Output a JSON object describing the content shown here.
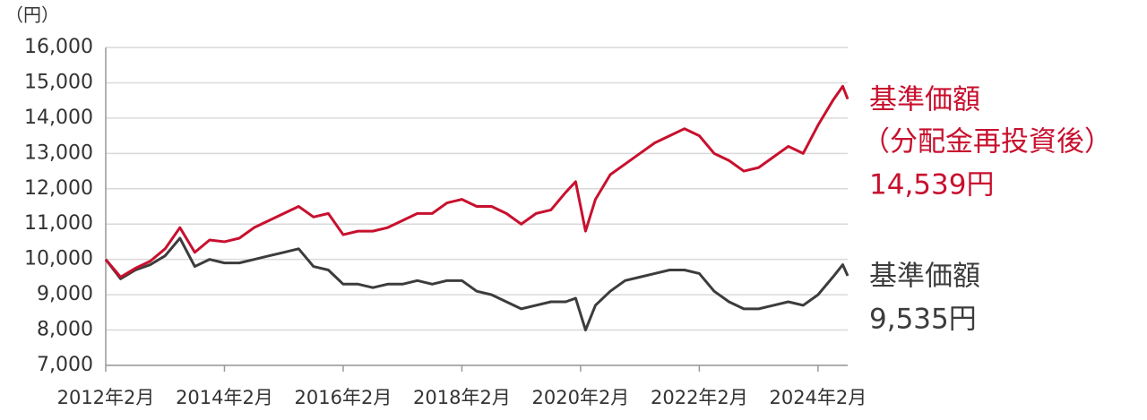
{
  "chart_data": {
    "type": "line",
    "y_unit": "（円）",
    "x": [
      "2012-02",
      "2012-05",
      "2012-08",
      "2012-11",
      "2013-02",
      "2013-05",
      "2013-08",
      "2013-11",
      "2014-02",
      "2014-05",
      "2014-08",
      "2014-11",
      "2015-02",
      "2015-05",
      "2015-08",
      "2015-11",
      "2016-02",
      "2016-05",
      "2016-08",
      "2016-11",
      "2017-02",
      "2017-05",
      "2017-08",
      "2017-11",
      "2018-02",
      "2018-05",
      "2018-08",
      "2018-11",
      "2019-02",
      "2019-05",
      "2019-08",
      "2019-11",
      "2020-01",
      "2020-03",
      "2020-05",
      "2020-08",
      "2020-11",
      "2021-02",
      "2021-05",
      "2021-08",
      "2021-11",
      "2022-02",
      "2022-05",
      "2022-08",
      "2022-11",
      "2023-02",
      "2023-05",
      "2023-08",
      "2023-11",
      "2024-02",
      "2024-05",
      "2024-07",
      "2024-08"
    ],
    "xlim": [
      "2012-02",
      "2024-08"
    ],
    "xticks": [
      {
        "value": "2012-02",
        "label": "2012年2月"
      },
      {
        "value": "2014-02",
        "label": "2014年2月"
      },
      {
        "value": "2016-02",
        "label": "2016年2月"
      },
      {
        "value": "2018-02",
        "label": "2018年2月"
      },
      {
        "value": "2020-02",
        "label": "2020年2月"
      },
      {
        "value": "2022-02",
        "label": "2022年2月"
      },
      {
        "value": "2024-02",
        "label": "2024年2月"
      }
    ],
    "ylim": [
      7000,
      16000
    ],
    "yticks": [
      {
        "value": 7000,
        "label": "7,000"
      },
      {
        "value": 8000,
        "label": "8,000"
      },
      {
        "value": 9000,
        "label": "9,000"
      },
      {
        "value": 10000,
        "label": "10,000"
      },
      {
        "value": 11000,
        "label": "11,000"
      },
      {
        "value": 12000,
        "label": "12,000"
      },
      {
        "value": 13000,
        "label": "13,000"
      },
      {
        "value": 14000,
        "label": "14,000"
      },
      {
        "value": 15000,
        "label": "15,000"
      },
      {
        "value": 16000,
        "label": "16,000"
      }
    ],
    "grid": true,
    "series": [
      {
        "name": "基準価額",
        "note": "（分配金再投資後）",
        "end_label": "14,539円",
        "color": "#c8102e",
        "values": [
          10000,
          9500,
          9750,
          9950,
          10300,
          10900,
          10200,
          10550,
          10500,
          10600,
          10900,
          11100,
          11300,
          11500,
          11200,
          11300,
          10700,
          10800,
          10800,
          10900,
          11100,
          11300,
          11300,
          11600,
          11700,
          11500,
          11500,
          11300,
          11000,
          11300,
          11400,
          11900,
          12200,
          10800,
          11700,
          12400,
          12700,
          13000,
          13300,
          13500,
          13700,
          13500,
          13000,
          12800,
          12500,
          12600,
          12900,
          13200,
          13000,
          13800,
          14500,
          14900,
          14539
        ]
      },
      {
        "name": "基準価額",
        "end_label": "9,535円",
        "color": "#3c3c3c",
        "values": [
          10000,
          9450,
          9700,
          9850,
          10100,
          10600,
          9800,
          10000,
          9900,
          9900,
          10000,
          10100,
          10200,
          10300,
          9800,
          9700,
          9300,
          9300,
          9200,
          9300,
          9300,
          9400,
          9300,
          9400,
          9400,
          9100,
          9000,
          8800,
          8600,
          8700,
          8800,
          8800,
          8900,
          8000,
          8700,
          9100,
          9400,
          9500,
          9600,
          9700,
          9700,
          9600,
          9100,
          8800,
          8600,
          8600,
          8700,
          8800,
          8700,
          9000,
          9500,
          9850,
          9535
        ]
      }
    ]
  }
}
